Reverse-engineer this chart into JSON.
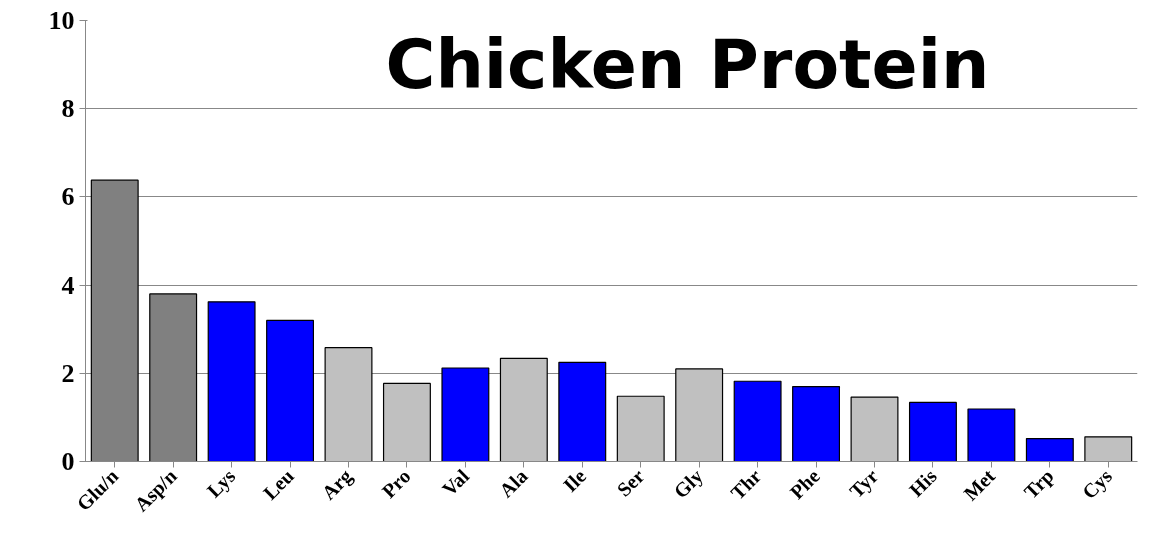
{
  "chart_data": {
    "type": "bar",
    "title": "Chicken Protein",
    "categories": [
      "Glu/n",
      "Asp/n",
      "Lys",
      "Leu",
      "Arg",
      "Pro",
      "Val",
      "Ala",
      "Ile",
      "Ser",
      "Gly",
      "Thr",
      "Phe",
      "Tyr",
      "His",
      "Met",
      "Trp",
      "Cys"
    ],
    "values": [
      6.38,
      3.8,
      3.62,
      3.2,
      2.58,
      1.77,
      2.12,
      2.34,
      2.25,
      1.48,
      2.1,
      1.82,
      1.7,
      1.46,
      1.34,
      1.19,
      0.52,
      0.56
    ],
    "colors": [
      "#808080",
      "#808080",
      "#0000ff",
      "#0000ff",
      "#c0c0c0",
      "#c0c0c0",
      "#0000ff",
      "#c0c0c0",
      "#0000ff",
      "#c0c0c0",
      "#c0c0c0",
      "#0000ff",
      "#0000ff",
      "#c0c0c0",
      "#0000ff",
      "#0000ff",
      "#0000ff",
      "#c0c0c0"
    ],
    "ylim": [
      0,
      10
    ],
    "yticks": [
      0,
      2,
      4,
      6,
      8,
      10
    ],
    "grid": "y"
  }
}
